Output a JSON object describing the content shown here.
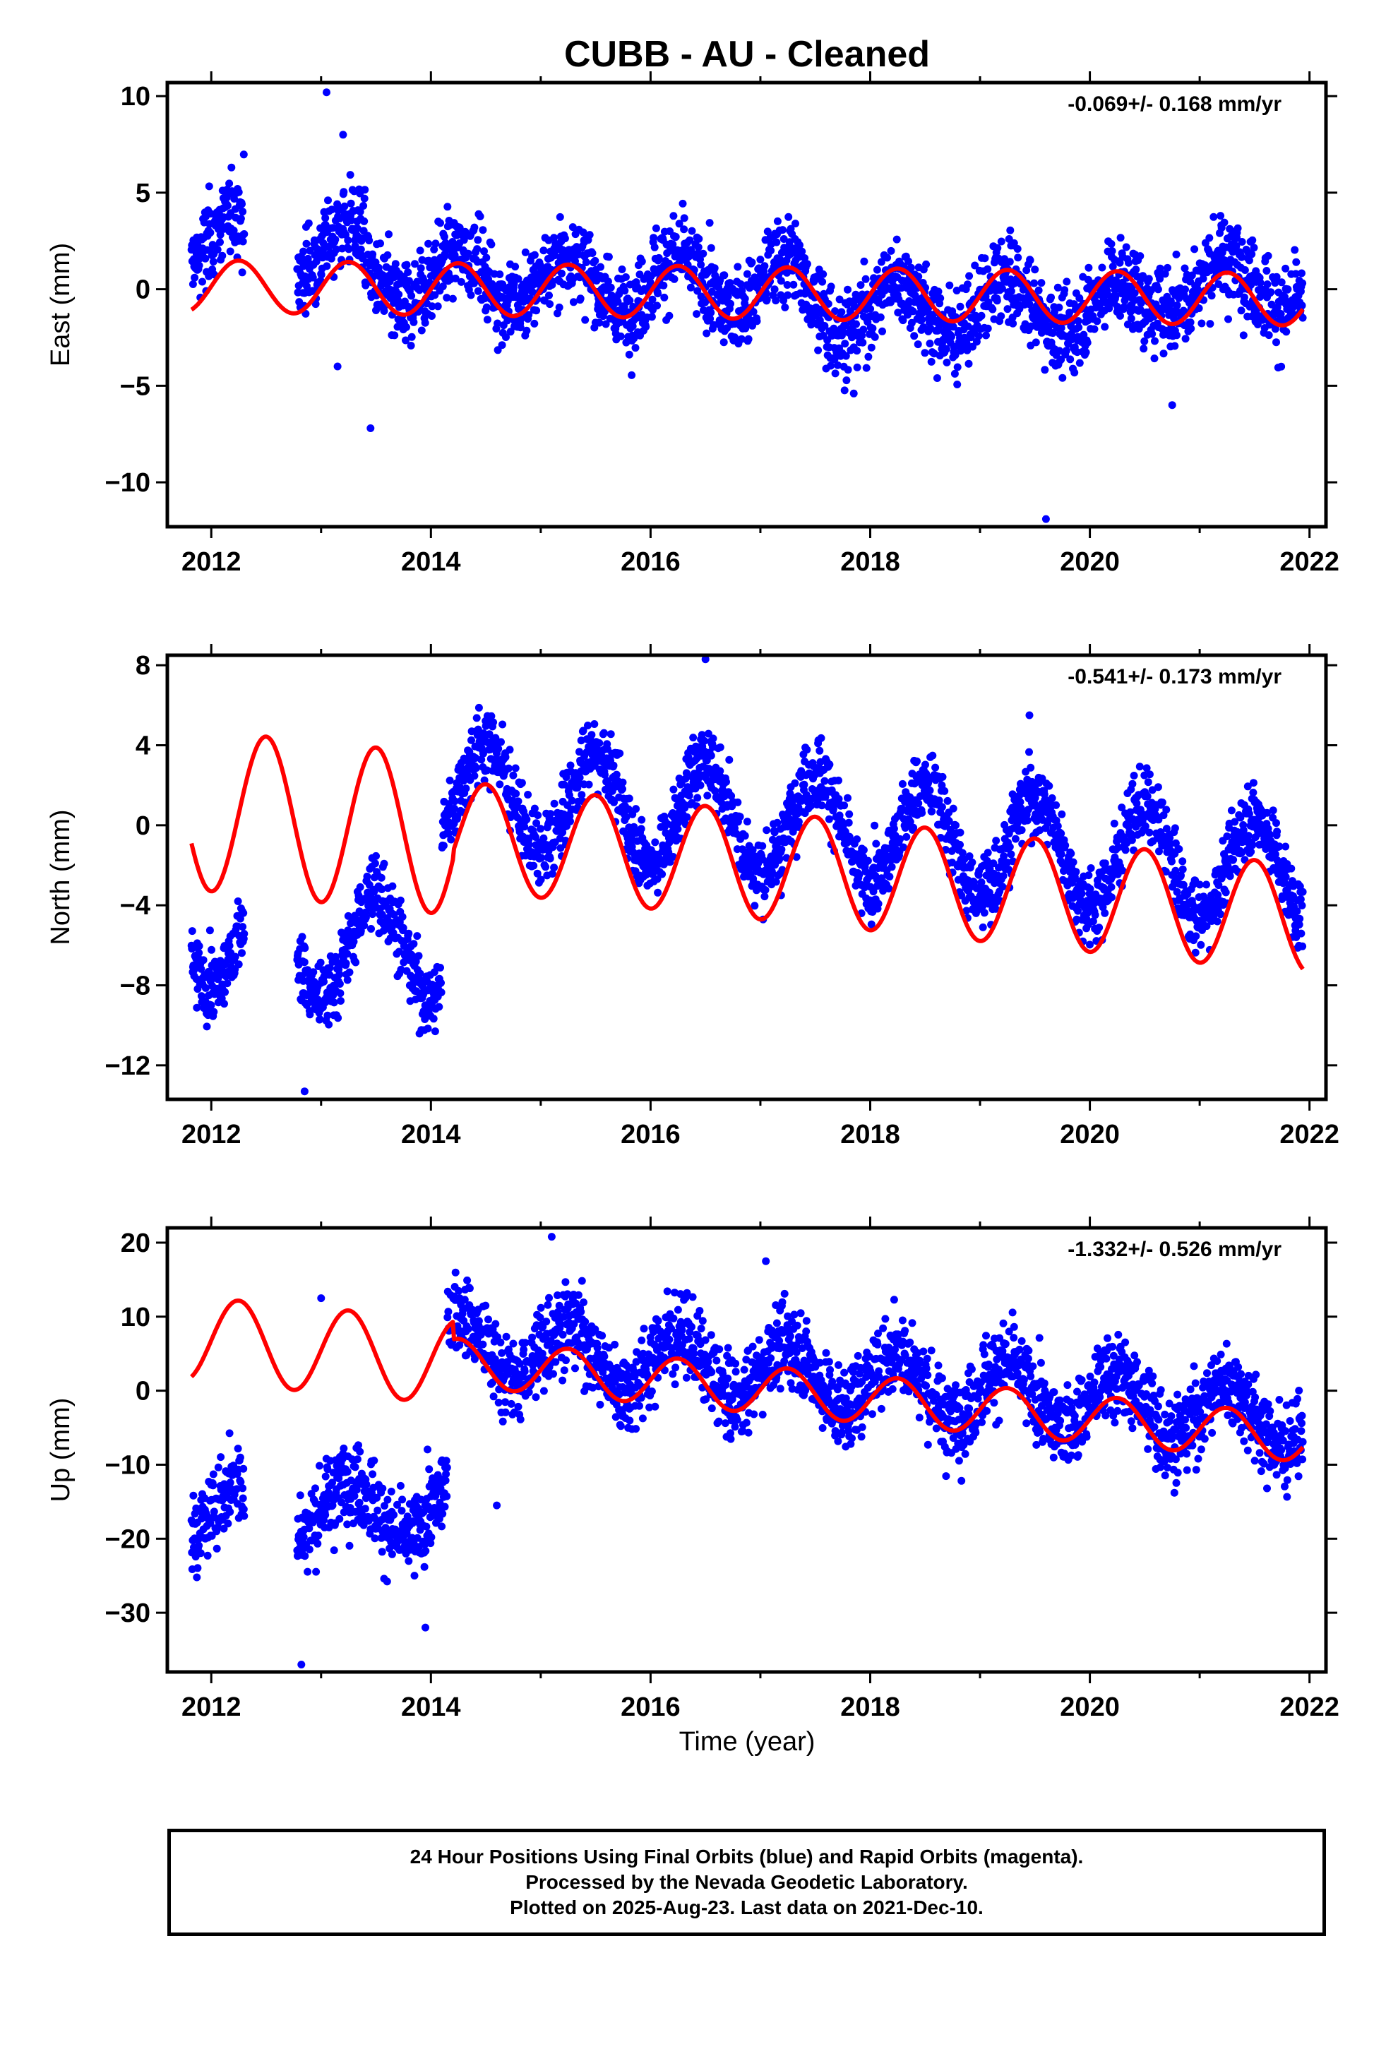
{
  "title": "CUBB  - AU - Cleaned",
  "xlabel": "Time (year)",
  "footer": {
    "line1": "24 Hour Positions Using Final Orbits (blue) and Rapid Orbits (magenta).",
    "line2": "Processed by the Nevada Geodetic Laboratory.",
    "line3": "Plotted on 2025-Aug-23. Last data on 2021-Dec-10."
  },
  "colors": {
    "points": "#0000ff",
    "model": "#ff0000",
    "frame": "#000000"
  },
  "chart_data": [
    {
      "type": "scatter",
      "component": "East",
      "ylabel": "East (mm)",
      "rate": "-0.069+/- 0.168 mm/yr",
      "xlim": [
        2011.6,
        2022.15
      ],
      "ylim": [
        -12.3,
        10.7
      ],
      "xticks": [
        2012,
        2014,
        2016,
        2018,
        2020,
        2022
      ],
      "yticks": [
        10,
        5,
        0,
        -5,
        -10
      ],
      "ytick_labels": [
        "10",
        "5",
        "0",
        "−5",
        "−10"
      ],
      "series": [
        {
          "kind": "points",
          "data_start": 2011.82,
          "data_end": 2021.94,
          "gaps": [
            [
              2012.3,
              2012.78
            ]
          ],
          "offsets": [
            [
              2011.8,
              2012.3,
              2.6
            ],
            [
              2012.78,
              2013.4,
              2.0
            ],
            [
              2013.4,
              2015.0,
              0.6
            ],
            [
              2015.0,
              2017.4,
              0.3
            ],
            [
              2017.4,
              2020.6,
              -0.9
            ],
            [
              2020.6,
              2021.94,
              0.3
            ]
          ],
          "annual_amp": 1.4,
          "scatter_sd": 1.1,
          "outliers": [
            [
              2013.05,
              10.2
            ],
            [
              2013.2,
              8.0
            ],
            [
              2013.45,
              -7.2
            ],
            [
              2013.15,
              -4.0
            ],
            [
              2019.6,
              -11.9
            ],
            [
              2017.85,
              -5.4
            ],
            [
              2020.75,
              -6.0
            ]
          ]
        },
        {
          "kind": "model",
          "start": 2011.82,
          "end": 2021.94,
          "offset": 0.15,
          "trend": -0.069,
          "annual_amp": 1.35,
          "annual_phase": 2012.25
        }
      ]
    },
    {
      "type": "scatter",
      "component": "North",
      "ylabel": "North (mm)",
      "rate": "-0.541+/- 0.173 mm/yr",
      "xlim": [
        2011.6,
        2022.15
      ],
      "ylim": [
        -13.7,
        8.5
      ],
      "xticks": [
        2012,
        2014,
        2016,
        2018,
        2020,
        2022
      ],
      "yticks": [
        8,
        4,
        0,
        -4,
        -8,
        -12
      ],
      "ytick_labels": [
        "8",
        "4",
        "0",
        "−4",
        "−8",
        "−12"
      ],
      "series": [
        {
          "kind": "points",
          "data_start": 2011.82,
          "data_end": 2021.94,
          "gaps": [
            [
              2012.3,
              2012.78
            ]
          ],
          "offsets": [
            [
              2011.8,
              2012.3,
              -5.5
            ],
            [
              2012.78,
              2014.1,
              -6.0
            ],
            [
              2014.1,
              2021.94,
              1.8
            ]
          ],
          "trend": -0.541,
          "trend_ref": 2014.1,
          "annual_amp": 2.6,
          "scatter_sd": 0.9,
          "outliers": [
            [
              2012.85,
              -13.3
            ],
            [
              2016.5,
              8.3
            ],
            [
              2019.45,
              5.5
            ]
          ]
        },
        {
          "kind": "model",
          "start": 2011.82,
          "end": 2021.94,
          "offset": 0.7,
          "trend": -0.541,
          "annual_amp": 2.7,
          "annual_phase": 2012.5
        }
      ]
    },
    {
      "type": "scatter",
      "component": "Up",
      "ylabel": "Up (mm)",
      "rate": "-1.332+/- 0.526 mm/yr",
      "xlim": [
        2011.6,
        2022.15
      ],
      "ylim": [
        -38,
        22
      ],
      "xticks": [
        2012,
        2014,
        2016,
        2018,
        2020,
        2022
      ],
      "yticks": [
        20,
        10,
        0,
        -10,
        -20,
        -30
      ],
      "ytick_labels": [
        "20",
        "10",
        "0",
        "−10",
        "−20",
        "−30"
      ],
      "series": [
        {
          "kind": "points",
          "data_start": 2011.82,
          "data_end": 2021.94,
          "gaps": [
            [
              2012.3,
              2012.78
            ]
          ],
          "offsets": [
            [
              2011.8,
              2012.3,
              -16.5
            ],
            [
              2012.78,
              2014.15,
              -16.0
            ],
            [
              2014.15,
              2021.94,
              6.5
            ]
          ],
          "trend": -1.332,
          "trend_ref": 2014.15,
          "annual_amp": 4.0,
          "scatter_sd": 2.8,
          "outliers": [
            [
              2012.82,
              -37.0
            ],
            [
              2015.1,
              20.8
            ],
            [
              2017.05,
              17.5
            ],
            [
              2013.0,
              12.5
            ],
            [
              2013.95,
              -32.0
            ],
            [
              2014.6,
              -15.5
            ]
          ]
        },
        {
          "kind": "model",
          "start": 2011.82,
          "end": 2021.94,
          "offset": 6.8,
          "trend": -1.332,
          "annual_amp": 3.2,
          "annual_phase": 2012.25
        }
      ]
    }
  ]
}
